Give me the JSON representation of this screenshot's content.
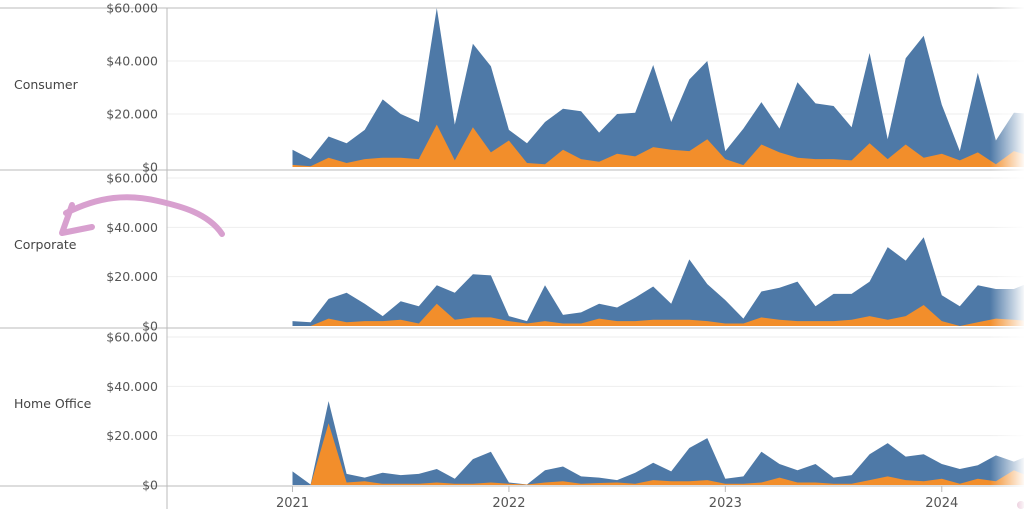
{
  "chart_data": {
    "type": "area",
    "stacked": false,
    "panels": [
      "Consumer",
      "Corporate",
      "Home Office"
    ],
    "yticks": [
      "$0",
      "$20.000",
      "$40.000",
      "$60.000"
    ],
    "ylim": [
      0,
      60000
    ],
    "xticks": [
      {
        "label": "2021",
        "t": 2021.0
      },
      {
        "label": "2022",
        "t": 2022.0
      },
      {
        "label": "2023",
        "t": 2023.0
      },
      {
        "label": "2024",
        "t": 2024.0
      }
    ],
    "xlim": [
      2020.42,
      2024.38
    ],
    "months_start": [
      2021,
      1
    ],
    "colors": {
      "blue": "#4E79A7",
      "orange": "#F28E2B",
      "grid": "#eeeeee",
      "axis": "#bbbbbb",
      "annotation": "#d8a0cf"
    },
    "series": [
      {
        "panel": "Consumer",
        "name": "blue",
        "values": [
          6500,
          3000,
          11500,
          9000,
          14000,
          25500,
          20000,
          17000,
          60000,
          16000,
          46500,
          38000,
          14000,
          9000,
          17000,
          22000,
          21000,
          13000,
          20000,
          20500,
          38500,
          17000,
          33000,
          40000,
          6000,
          14500,
          24500,
          14500,
          32000,
          24000,
          23000,
          15000,
          43000,
          10500,
          41000,
          49500,
          23500,
          6000,
          35500,
          10000,
          20500,
          20000
        ]
      },
      {
        "panel": "Consumer",
        "name": "orange",
        "values": [
          800,
          300,
          3500,
          1500,
          3000,
          3500,
          3500,
          3000,
          16000,
          2500,
          15000,
          5500,
          10000,
          1500,
          1000,
          6500,
          3000,
          2000,
          5000,
          4000,
          7500,
          6500,
          6000,
          10500,
          3000,
          700,
          8500,
          5500,
          3500,
          3000,
          3000,
          2500,
          9000,
          3000,
          8500,
          3500,
          5000,
          2500,
          5500,
          1000,
          6000,
          4000
        ]
      },
      {
        "panel": "Corporate",
        "name": "blue",
        "values": [
          2000,
          1500,
          11000,
          13500,
          9000,
          4000,
          10000,
          8000,
          16500,
          13500,
          21000,
          20500,
          4000,
          2000,
          16500,
          4500,
          5500,
          9000,
          7500,
          11500,
          16000,
          9000,
          27000,
          17000,
          10500,
          3000,
          14000,
          15500,
          18000,
          8000,
          13000,
          13000,
          18000,
          32000,
          26500,
          36000,
          12500,
          8000,
          16500,
          15000,
          15000,
          18000
        ]
      },
      {
        "panel": "Corporate",
        "name": "orange",
        "values": [
          0,
          0,
          3000,
          1500,
          2000,
          2000,
          2500,
          1000,
          9000,
          2500,
          3500,
          3500,
          2000,
          1000,
          2000,
          1000,
          1000,
          3000,
          2000,
          2000,
          2500,
          2500,
          2500,
          2000,
          1000,
          1000,
          3500,
          2500,
          2000,
          2000,
          2000,
          2500,
          4000,
          2500,
          4000,
          8500,
          2000,
          0,
          1500,
          3000,
          2500,
          2000
        ]
      },
      {
        "panel": "Home Office",
        "name": "blue",
        "values": [
          5500,
          200,
          34000,
          4500,
          3000,
          5000,
          4000,
          4500,
          6500,
          2500,
          10500,
          13500,
          1000,
          200,
          6000,
          7500,
          3500,
          3000,
          2000,
          5000,
          9000,
          5500,
          15000,
          19000,
          2500,
          3500,
          13500,
          8500,
          6000,
          8500,
          3000,
          4000,
          12500,
          17000,
          11500,
          12500,
          8500,
          6500,
          8000,
          12000,
          9500,
          12500
        ]
      },
      {
        "panel": "Home Office",
        "name": "orange",
        "values": [
          0,
          0,
          25000,
          1000,
          1500,
          500,
          500,
          500,
          1000,
          500,
          500,
          1000,
          500,
          200,
          1000,
          1500,
          500,
          800,
          1000,
          500,
          2000,
          1500,
          1500,
          2000,
          500,
          500,
          1000,
          3000,
          1000,
          1000,
          500,
          500,
          2000,
          3500,
          2000,
          1500,
          2500,
          500,
          2500,
          1500,
          6000,
          3000
        ]
      }
    ]
  }
}
